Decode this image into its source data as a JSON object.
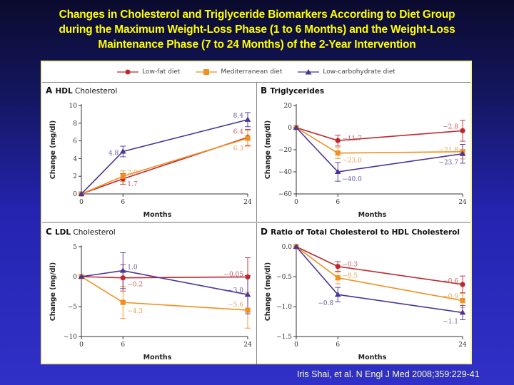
{
  "title": {
    "lines": [
      "Changes in Cholesterol and Triglyceride Biomarkers According to Diet Group",
      "during the Maximum Weight-Loss Phase (1 to 6 Months) and the Weight-Loss",
      "Maintenance Phase (7 to 24 Months) of the 2-Year Intervention"
    ]
  },
  "legend": {
    "items": [
      {
        "label": "Low-fat diet",
        "color": "#c0272d",
        "marker": "circle"
      },
      {
        "label": "Mediterranean diet",
        "color": "#f0901e",
        "marker": "square"
      },
      {
        "label": "Low-carbohydrate diet",
        "color": "#4b3597",
        "marker": "triangle"
      }
    ]
  },
  "citation": "Iris Shai,  et al. N Engl J Med 2008;359:229-41",
  "chart_data": [
    {
      "type": "line",
      "panel": "A",
      "title_bold": "HDL",
      "title_rest": " Cholesterol",
      "xlabel": "Months",
      "ylabel": "Change (mg/dl)",
      "x": [
        0,
        6,
        24
      ],
      "xticks": [
        "0",
        "6",
        "24"
      ],
      "ylim": [
        0,
        10
      ],
      "yticks": [
        0,
        2,
        4,
        6,
        8,
        10
      ],
      "ytick_labels": [
        "0",
        "2",
        "4",
        "6",
        "8",
        "10"
      ],
      "series": [
        {
          "name": "Low-fat diet",
          "values": [
            0,
            1.7,
            6.4
          ],
          "err": [
            0,
            0.6,
            0.9
          ],
          "labels": [
            "",
            "1.7",
            "6.4"
          ]
        },
        {
          "name": "Mediterranean diet",
          "values": [
            0,
            2.0,
            6.3
          ],
          "err": [
            0,
            0.6,
            0.9
          ],
          "labels": [
            "",
            "2.0",
            "6.3"
          ]
        },
        {
          "name": "Low-carbohydrate diet",
          "values": [
            0,
            4.8,
            8.4
          ],
          "err": [
            0,
            0.6,
            0.8
          ],
          "labels": [
            "",
            "4.8",
            "8.4"
          ]
        }
      ]
    },
    {
      "type": "line",
      "panel": "B",
      "title_bold": "Triglycerides",
      "title_rest": "",
      "xlabel": "Months",
      "ylabel": "Change (mg/dl)",
      "x": [
        0,
        6,
        24
      ],
      "xticks": [
        "0",
        "6",
        "24"
      ],
      "ylim": [
        -60,
        20
      ],
      "yticks": [
        -60,
        -40,
        -20,
        0,
        20
      ],
      "ytick_labels": [
        "−60",
        "−40",
        "−20",
        "0",
        "20"
      ],
      "series": [
        {
          "name": "Low-fat diet",
          "values": [
            0,
            -11.7,
            -2.8
          ],
          "err": [
            0,
            5,
            9.5
          ],
          "labels": [
            "",
            "−11.7",
            "−2.8"
          ]
        },
        {
          "name": "Mediterranean diet",
          "values": [
            0,
            -23.0,
            -21.8
          ],
          "err": [
            0,
            5,
            6.5
          ],
          "labels": [
            "",
            "−23.0",
            "−21.8"
          ]
        },
        {
          "name": "Low-carbohydrate diet",
          "values": [
            0,
            -40.0,
            -23.7
          ],
          "err": [
            0,
            8.5,
            8.5
          ],
          "labels": [
            "",
            "−40.0",
            "−23.7"
          ]
        }
      ]
    },
    {
      "type": "line",
      "panel": "C",
      "title_bold": "LDL",
      "title_rest": " Cholesterol",
      "xlabel": "Months",
      "ylabel": "Change (mg/dl)",
      "x": [
        0,
        6,
        24
      ],
      "xticks": [
        "0",
        "6",
        "24"
      ],
      "ylim": [
        -10,
        5
      ],
      "yticks": [
        -10,
        -5,
        0,
        5
      ],
      "ytick_labels": [
        "−10",
        "−5",
        "0",
        "5"
      ],
      "series": [
        {
          "name": "Low-fat diet",
          "values": [
            0,
            -0.2,
            -0.05
          ],
          "err": [
            0,
            2.2,
            3.2
          ],
          "labels": [
            "",
            "−0.2",
            "−0.05"
          ]
        },
        {
          "name": "Mediterranean diet",
          "values": [
            0,
            -4.3,
            -5.6
          ],
          "err": [
            0,
            2.7,
            3.0
          ],
          "labels": [
            "",
            "−4.3",
            "−5.6"
          ]
        },
        {
          "name": "Low-carbohydrate diet",
          "values": [
            0,
            1.0,
            -3.0
          ],
          "err": [
            0,
            3.0,
            3.2
          ],
          "labels": [
            "",
            "1.0",
            "−3.0"
          ]
        }
      ]
    },
    {
      "type": "line",
      "panel": "D",
      "title_bold": "Ratio of Total Cholesterol to HDL Cholesterol",
      "title_rest": "",
      "xlabel": "Months",
      "ylabel": "Change (mg/dl)",
      "x": [
        0,
        6,
        24
      ],
      "xticks": [
        "0",
        "6",
        "24"
      ],
      "ylim": [
        -1.5,
        0
      ],
      "yticks": [
        -1.5,
        -1.0,
        -0.5,
        0.0
      ],
      "ytick_labels": [
        "−1.5",
        "−1.0",
        "−0.5",
        "0.0"
      ],
      "series": [
        {
          "name": "Low-fat diet",
          "values": [
            0,
            -0.33,
            -0.63
          ],
          "err": [
            0,
            0.08,
            0.14
          ],
          "labels": [
            "",
            "−0.3",
            "−0.6"
          ]
        },
        {
          "name": "Mediterranean diet",
          "values": [
            0,
            -0.52,
            -0.9
          ],
          "err": [
            0,
            0.1,
            0.12
          ],
          "labels": [
            "",
            "−0.5",
            "−0.9"
          ]
        },
        {
          "name": "Low-carbohydrate diet",
          "values": [
            0,
            -0.8,
            -1.1
          ],
          "err": [
            0,
            0.12,
            0.12
          ],
          "labels": [
            "",
            "−0.8",
            "−1.1"
          ]
        }
      ]
    }
  ]
}
